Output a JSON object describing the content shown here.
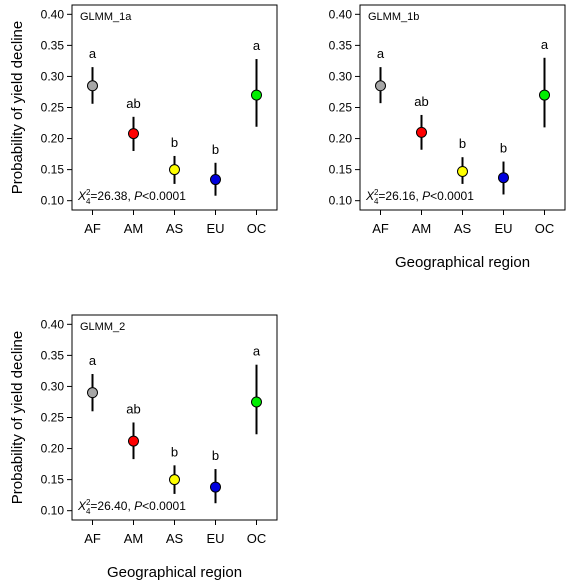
{
  "chart_data": [
    {
      "type": "errorbar",
      "title": "GLMM_1a",
      "ylabel": "Probability of yield decline",
      "categories": [
        "AF",
        "AM",
        "AS",
        "EU",
        "OC"
      ],
      "values": [
        0.285,
        0.208,
        0.15,
        0.134,
        0.27
      ],
      "lower": [
        0.256,
        0.18,
        0.127,
        0.108,
        0.219
      ],
      "upper": [
        0.315,
        0.235,
        0.172,
        0.161,
        0.328
      ],
      "colors": [
        "#a6a6a6",
        "#ff0000",
        "#ffff00",
        "#0000dd",
        "#00ee00"
      ],
      "letters": [
        "a",
        "ab",
        "b",
        "b",
        "a"
      ],
      "stat": {
        "symbol": "X",
        "sup": "2",
        "sub": "4",
        "value": "=26.38, ",
        "p": "P",
        "p_value": "<0.0001"
      },
      "ylim": [
        0.085,
        0.415
      ],
      "yticks": [
        {
          "value": 0.1,
          "label": "0.10"
        },
        0.15,
        {
          "value": 0.2,
          "label": "0.20"
        },
        0.25,
        {
          "value": 0.3,
          "label": "0.30"
        },
        0.35,
        {
          "value": 0.4,
          "label": "0.40"
        }
      ]
    },
    {
      "type": "errorbar",
      "title": "GLMM_1b",
      "xlabel": "Geographical region",
      "categories": [
        "AF",
        "AM",
        "AS",
        "EU",
        "OC"
      ],
      "values": [
        0.285,
        0.21,
        0.147,
        0.137,
        0.27
      ],
      "lower": [
        0.257,
        0.182,
        0.127,
        0.11,
        0.218
      ],
      "upper": [
        0.315,
        0.238,
        0.17,
        0.163,
        0.33
      ],
      "colors": [
        "#a6a6a6",
        "#ff0000",
        "#ffff00",
        "#0000dd",
        "#00ee00"
      ],
      "letters": [
        "a",
        "ab",
        "b",
        "b",
        "a"
      ],
      "stat": {
        "symbol": "X",
        "sup": "2",
        "sub": "4",
        "value": "=26.16, ",
        "p": "P",
        "p_value": "<0.0001"
      },
      "ylim": [
        0.085,
        0.415
      ],
      "yticks": [
        {
          "value": 0.1,
          "label": "0.10"
        },
        0.15,
        {
          "value": 0.2,
          "label": "0.20"
        },
        0.25,
        {
          "value": 0.3,
          "label": "0.30"
        },
        0.35,
        {
          "value": 0.4,
          "label": "0.40"
        }
      ]
    },
    {
      "type": "errorbar",
      "title": "GLMM_2",
      "ylabel": "Probability of yield decline",
      "xlabel": "Geographical region",
      "categories": [
        "AF",
        "AM",
        "AS",
        "EU",
        "OC"
      ],
      "values": [
        0.29,
        0.212,
        0.15,
        0.138,
        0.275
      ],
      "lower": [
        0.26,
        0.183,
        0.127,
        0.112,
        0.223
      ],
      "upper": [
        0.32,
        0.242,
        0.173,
        0.167,
        0.335
      ],
      "colors": [
        "#a6a6a6",
        "#ff0000",
        "#ffff00",
        "#0000dd",
        "#00ee00"
      ],
      "letters": [
        "a",
        "ab",
        "b",
        "b",
        "a"
      ],
      "stat": {
        "symbol": "X",
        "sup": "2",
        "sub": "4",
        "value": "=26.40, ",
        "p": "P",
        "p_value": "<0.0001"
      },
      "ylim": [
        0.085,
        0.415
      ],
      "yticks": [
        {
          "value": 0.1,
          "label": "0.10"
        },
        0.15,
        {
          "value": 0.2,
          "label": "0.20"
        },
        0.25,
        {
          "value": 0.3,
          "label": "0.30"
        },
        0.35,
        {
          "value": 0.4,
          "label": "0.40"
        }
      ]
    }
  ]
}
